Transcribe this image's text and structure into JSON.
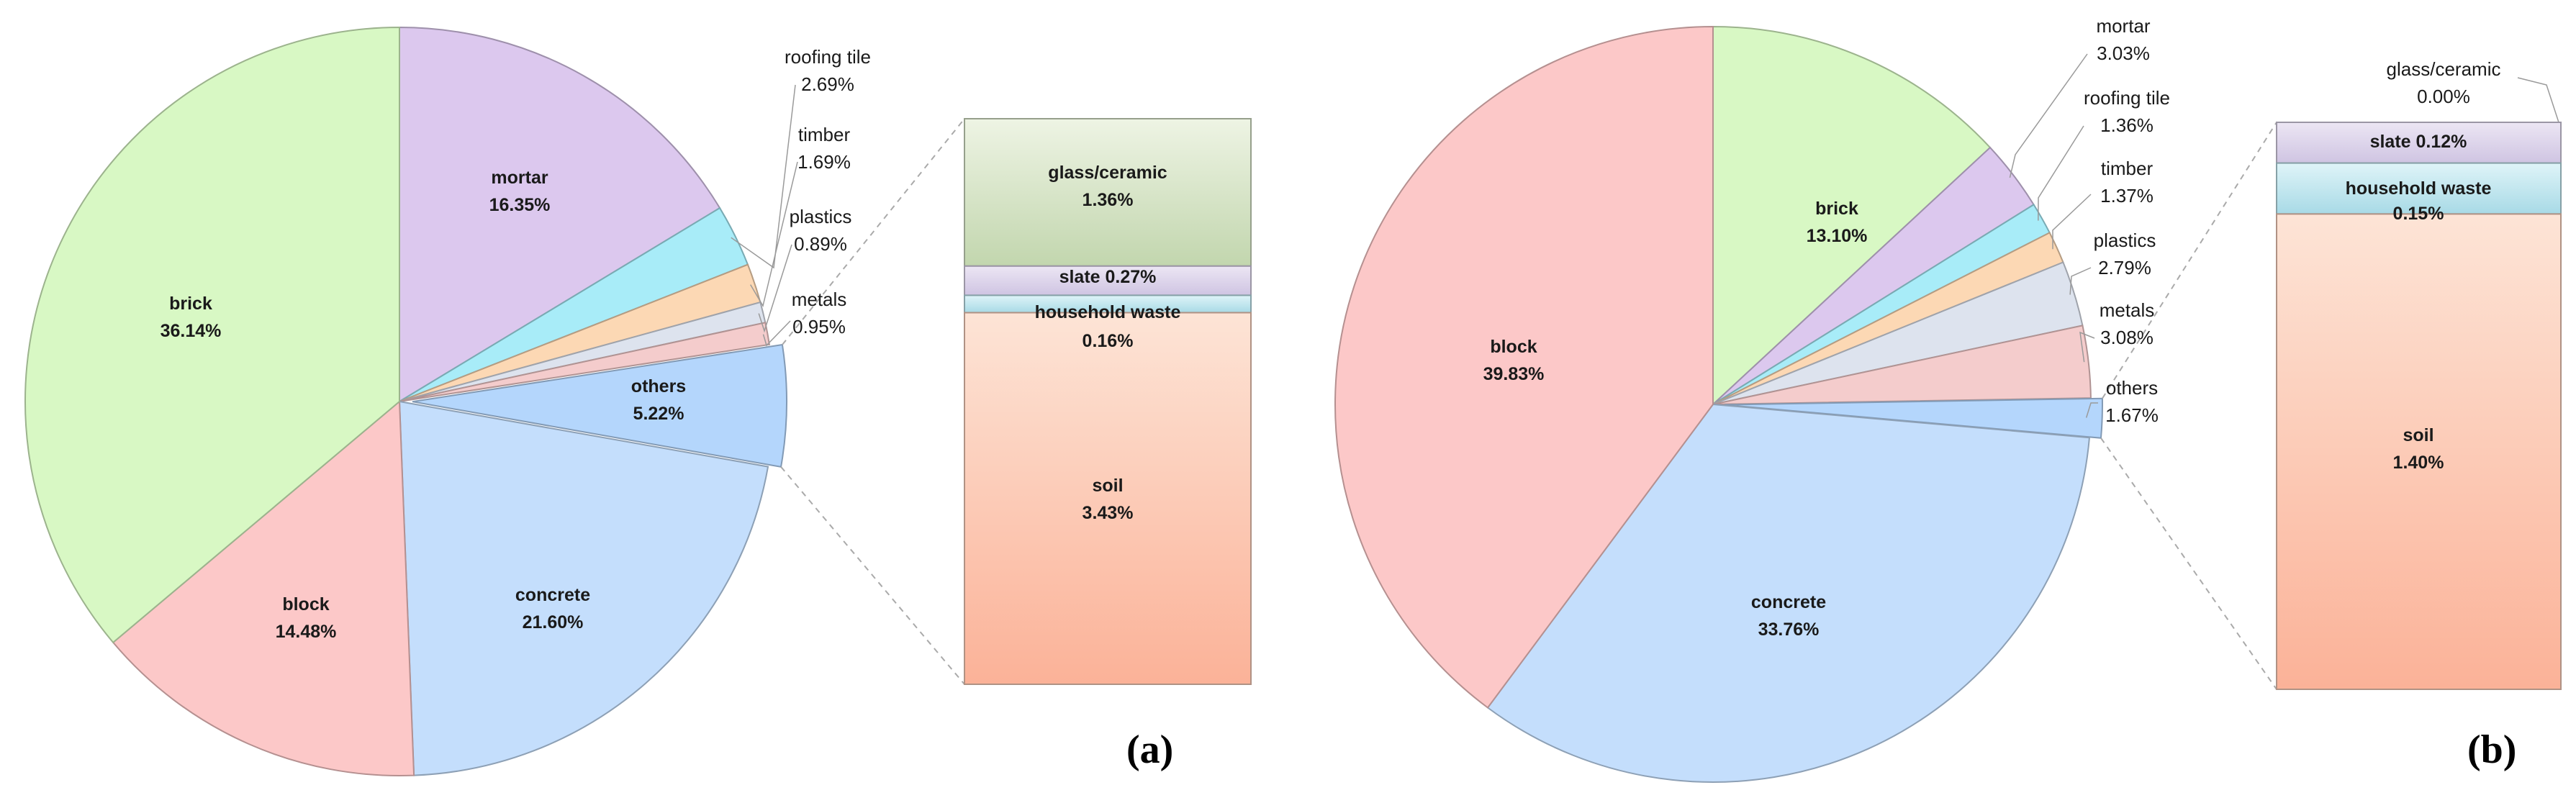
{
  "chart_data": [
    {
      "type": "pie",
      "panel_label": "(a)",
      "slices": [
        {
          "label": "mortar",
          "value": 16.35,
          "display": "16.35%",
          "color": "#dcc8ee",
          "label_pos": "inside"
        },
        {
          "label": "roofing tile",
          "value": 2.69,
          "display": "2.69%",
          "color": "#a8ecf8",
          "label_pos": "outside"
        },
        {
          "label": "timber",
          "value": 1.69,
          "display": "1.69%",
          "color": "#fcd8b4",
          "label_pos": "outside"
        },
        {
          "label": "plastics",
          "value": 0.89,
          "display": "0.89%",
          "color": "#dde3ee",
          "label_pos": "outside"
        },
        {
          "label": "metals",
          "value": 0.95,
          "display": "0.95%",
          "color": "#f4cccc",
          "label_pos": "outside"
        },
        {
          "label": "others",
          "value": 5.22,
          "display": "5.22%",
          "color": "#b4d6fc",
          "label_pos": "inside",
          "exploded": true
        },
        {
          "label": "concrete",
          "value": 21.6,
          "display": "21.60%",
          "color": "#c4defc",
          "label_pos": "inside"
        },
        {
          "label": "block",
          "value": 14.48,
          "display": "14.48%",
          "color": "#fcc8c8",
          "label_pos": "inside"
        },
        {
          "label": "brick",
          "value": 36.14,
          "display": "36.14%",
          "color": "#d8f8c4",
          "label_pos": "inside"
        }
      ],
      "breakdown": {
        "of": "others",
        "items": [
          {
            "label": "glass/ceramic",
            "value": 1.36,
            "display": "1.36%",
            "color": "#d6e4c8",
            "inline": false
          },
          {
            "label": "slate",
            "value": 0.27,
            "display": "0.27%",
            "color": "#ddd6ec",
            "inline": true
          },
          {
            "label": "household waste",
            "value": 0.16,
            "display": "0.16%",
            "color": "#bfe6ee",
            "inline": false
          },
          {
            "label": "soil",
            "value": 3.43,
            "display": "3.43%",
            "color": "#fcd0bc",
            "inline": false
          }
        ]
      }
    },
    {
      "type": "pie",
      "panel_label": "(b)",
      "slices": [
        {
          "label": "brick",
          "value": 13.1,
          "display": "13.10%",
          "color": "#d8f8c4",
          "label_pos": "inside"
        },
        {
          "label": "mortar",
          "value": 3.03,
          "display": "3.03%",
          "color": "#dcc8ee",
          "label_pos": "outside"
        },
        {
          "label": "roofing tile",
          "value": 1.36,
          "display": "1.36%",
          "color": "#a8ecf8",
          "label_pos": "outside"
        },
        {
          "label": "timber",
          "value": 1.37,
          "display": "1.37%",
          "color": "#fcd8b4",
          "label_pos": "outside"
        },
        {
          "label": "plastics",
          "value": 2.79,
          "display": "2.79%",
          "color": "#dde3ee",
          "label_pos": "outside"
        },
        {
          "label": "metals",
          "value": 3.08,
          "display": "3.08%",
          "color": "#f4cccc",
          "label_pos": "outside"
        },
        {
          "label": "others",
          "value": 1.67,
          "display": "1.67%",
          "color": "#b4d6fc",
          "label_pos": "outside",
          "exploded": true
        },
        {
          "label": "concrete",
          "value": 33.76,
          "display": "33.76%",
          "color": "#c4defc",
          "label_pos": "inside"
        },
        {
          "label": "block",
          "value": 39.83,
          "display": "39.83%",
          "color": "#fcc8c8",
          "label_pos": "inside"
        }
      ],
      "breakdown": {
        "of": "others",
        "items": [
          {
            "label": "glass/ceramic",
            "value": 0.0,
            "display": "0.00%",
            "color": "#d6e4c8",
            "inline": false
          },
          {
            "label": "slate",
            "value": 0.12,
            "display": "0.12%",
            "color": "#ddd6ec",
            "inline": true
          },
          {
            "label": "household waste",
            "value": 0.15,
            "display": "0.15%",
            "color": "#bfe6ee",
            "inline": false
          },
          {
            "label": "soil",
            "value": 1.4,
            "display": "1.40%",
            "color": "#fcd0bc",
            "inline": false
          }
        ]
      }
    }
  ]
}
